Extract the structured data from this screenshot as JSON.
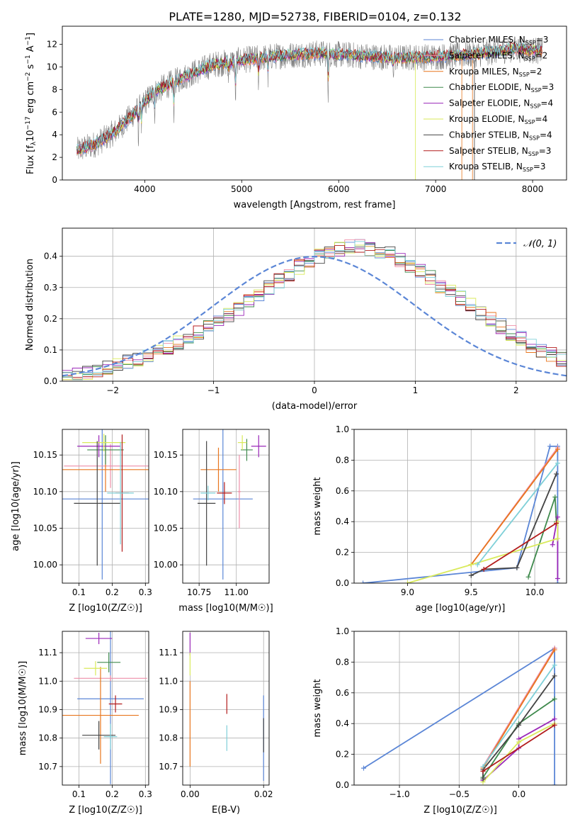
{
  "figure_title": "PLATE=1280, MJD=52738, FIBERID=0104, z=0.132",
  "colors": {
    "Chabrier MILES": "#5b86d6",
    "Salpeter MILES": "#ee8ea8",
    "Kroupa MILES": "#e8761e",
    "Chabrier ELODIE": "#3f8a4d",
    "Salpeter ELODIE": "#9a27b8",
    "Kroupa ELODIE": "#d9ea5a",
    "Chabrier STELIB": "#444444",
    "Salpeter STELIB": "#b31c1c",
    "Kroupa STELIB": "#7fd0d8",
    "data": "#808080",
    "normal": "#5b86d6"
  },
  "chart_data": [
    {
      "type": "line",
      "panel": "spectrum",
      "title": "PLATE=1280, MJD=52738, FIBERID=0104, z=0.132",
      "xlabel": "wavelength [Angstrom, rest frame]",
      "ylabel": "Flux [f_λ 10^-17 erg cm^-2 s^-1 A^-1]",
      "xlim": [
        3150,
        8350
      ],
      "ylim": [
        0,
        13.6
      ],
      "xticks": [
        4000,
        5000,
        6000,
        7000,
        8000
      ],
      "yticks": [
        0,
        2,
        4,
        6,
        8,
        10,
        12
      ],
      "legend_position": "top-right",
      "legend": [
        {
          "name": "Chabrier MILES",
          "nssp": "3"
        },
        {
          "name": "Salpeter MILES",
          "nssp": "2"
        },
        {
          "name": "Kroupa MILES",
          "nssp": "2"
        },
        {
          "name": "Chabrier ELODIE",
          "nssp": "3"
        },
        {
          "name": "Salpeter ELODIE",
          "nssp": "4"
        },
        {
          "name": "Kroupa ELODIE",
          "nssp": "4"
        },
        {
          "name": "Chabrier STELIB",
          "nssp": "4"
        },
        {
          "name": "Salpeter STELIB",
          "nssp": "3"
        },
        {
          "name": "Kroupa STELIB",
          "nssp": "3"
        }
      ],
      "continuum": {
        "x": [
          3300,
          3500,
          3700,
          3900,
          4100,
          4400,
          4700,
          5000,
          5400,
          5800,
          6200,
          6600,
          7000,
          7400,
          7800,
          8100
        ],
        "y": [
          2.6,
          3.2,
          4.3,
          6.0,
          7.8,
          9.1,
          10.2,
          10.6,
          11.0,
          11.2,
          11.0,
          10.8,
          10.9,
          11.1,
          11.6,
          11.4
        ]
      },
      "model_range": [
        3300,
        8100
      ],
      "grid": false
    },
    {
      "type": "step",
      "panel": "residual-histogram",
      "xlabel": "(data-model)/error",
      "ylabel": "Normed distribution",
      "xlim": [
        -2.5,
        2.5
      ],
      "ylim": [
        0,
        0.49
      ],
      "xticks": [
        -2,
        -1,
        0,
        1,
        2
      ],
      "yticks": [
        0.0,
        0.1,
        0.2,
        0.3,
        0.4
      ],
      "legend_position": "top-right",
      "normal_label": "𝒩(0, 1)",
      "bin_width": 0.1,
      "bins_start": -2.5,
      "base_values": [
        0.018,
        0.024,
        0.03,
        0.036,
        0.044,
        0.052,
        0.062,
        0.072,
        0.084,
        0.096,
        0.11,
        0.125,
        0.14,
        0.156,
        0.174,
        0.194,
        0.214,
        0.235,
        0.256,
        0.278,
        0.3,
        0.322,
        0.344,
        0.366,
        0.386,
        0.402,
        0.414,
        0.423,
        0.428,
        0.429,
        0.426,
        0.418,
        0.406,
        0.39,
        0.372,
        0.352,
        0.33,
        0.308,
        0.286,
        0.264,
        0.242,
        0.22,
        0.198,
        0.176,
        0.155,
        0.135,
        0.116,
        0.099,
        0.084,
        0.07
      ],
      "grid": true
    },
    {
      "type": "errorbar",
      "panel": "age-vs-Z",
      "xlabel": "Z [log10(Z/Z☉)]",
      "ylabel": "age [log10(age/yr)]",
      "xlim": [
        0.05,
        0.31
      ],
      "ylim": [
        9.975,
        10.185
      ],
      "xticks": [
        0.1,
        0.2,
        0.3
      ],
      "yticks": [
        10.0,
        10.05,
        10.1,
        10.15
      ],
      "points": [
        {
          "series": "Chabrier MILES",
          "x": 0.17,
          "xerr": 0.14,
          "y": 10.09,
          "yerr": 0.11
        },
        {
          "series": "Salpeter MILES",
          "x": 0.195,
          "xerr": 0.14,
          "y": 10.135,
          "yerr": 0.03
        },
        {
          "series": "Kroupa MILES",
          "x": 0.18,
          "xerr": 0.14,
          "y": 10.13,
          "yerr": 0.03
        },
        {
          "series": "Chabrier ELODIE",
          "x": 0.18,
          "xerr": 0.055,
          "y": 10.157,
          "yerr": 0.02
        },
        {
          "series": "Salpeter ELODIE",
          "x": 0.16,
          "xerr": 0.065,
          "y": 10.162,
          "yerr": 0.015
        },
        {
          "series": "Kroupa ELODIE",
          "x": 0.175,
          "xerr": 0.065,
          "y": 10.167,
          "yerr": 0.012
        },
        {
          "series": "Chabrier STELIB",
          "x": 0.155,
          "xerr": 0.07,
          "y": 10.084,
          "yerr": 0.085
        },
        {
          "series": "Salpeter STELIB",
          "x": 0.23,
          "xerr": 0.02,
          "y": 10.098,
          "yerr": 0.08
        },
        {
          "series": "Kroupa STELIB",
          "x": 0.225,
          "xerr": 0.04,
          "y": 10.098,
          "yerr": 0.07
        }
      ],
      "grid": true
    },
    {
      "type": "errorbar",
      "panel": "age-vs-mass",
      "xlabel": "mass [log10(M/M☉)]",
      "ylabel": "",
      "xlim": [
        10.64,
        11.22
      ],
      "ylim": [
        9.975,
        10.185
      ],
      "xticks": [
        10.75,
        11.0
      ],
      "xticklabels": [
        "10.75",
        "11.00"
      ],
      "yticks": [
        10.0,
        10.05,
        10.1,
        10.15
      ],
      "points": [
        {
          "series": "Chabrier MILES",
          "x": 10.91,
          "xerr": 0.2,
          "y": 10.09,
          "yerr": 0.11
        },
        {
          "series": "Salpeter MILES",
          "x": 11.02,
          "xerr": 0.01,
          "y": 10.1,
          "yerr": 0.05
        },
        {
          "series": "Kroupa MILES",
          "x": 10.88,
          "xerr": 0.12,
          "y": 10.13,
          "yerr": 0.03
        },
        {
          "series": "Chabrier ELODIE",
          "x": 11.07,
          "xerr": 0.04,
          "y": 10.157,
          "yerr": 0.015
        },
        {
          "series": "Salpeter ELODIE",
          "x": 11.15,
          "xerr": 0.05,
          "y": 10.162,
          "yerr": 0.015
        },
        {
          "series": "Kroupa ELODIE",
          "x": 11.04,
          "xerr": 0.03,
          "y": 10.167,
          "yerr": 0.01
        },
        {
          "series": "Chabrier STELIB",
          "x": 10.8,
          "xerr": 0.06,
          "y": 10.084,
          "yerr": 0.085
        },
        {
          "series": "Salpeter STELIB",
          "x": 10.92,
          "xerr": 0.05,
          "y": 10.098,
          "yerr": 0.015
        },
        {
          "series": "Kroupa STELIB",
          "x": 10.81,
          "xerr": 0.05,
          "y": 10.098,
          "yerr": 0.01
        }
      ],
      "grid": true
    },
    {
      "type": "line",
      "panel": "weight-vs-age",
      "xlabel": "age [log10(age/yr)]",
      "ylabel": "mass weight",
      "xlim": [
        8.58,
        10.25
      ],
      "ylim": [
        0,
        1.0
      ],
      "xticks": [
        9.0,
        9.5,
        10.0
      ],
      "yticks": [
        0.0,
        0.2,
        0.4,
        0.6,
        0.8,
        1.0
      ],
      "series": [
        {
          "name": "Chabrier MILES",
          "x": [
            8.65,
            9.86,
            10.12,
            10.18,
            10.18
          ],
          "y": [
            0.0,
            0.1,
            0.89,
            0.89,
            0.0
          ]
        },
        {
          "name": "Salpeter MILES",
          "x": [
            9.5,
            10.18
          ],
          "y": [
            0.12,
            0.88
          ]
        },
        {
          "name": "Kroupa MILES",
          "x": [
            9.5,
            10.18
          ],
          "y": [
            0.12,
            0.87
          ]
        },
        {
          "name": "Chabrier ELODIE",
          "x": [
            9.95,
            10.16,
            10.17
          ],
          "y": [
            0.04,
            0.56,
            0.4
          ]
        },
        {
          "name": "Salpeter ELODIE",
          "x": [
            10.14,
            10.18,
            10.18
          ],
          "y": [
            0.25,
            0.43,
            0.03
          ]
        },
        {
          "name": "Kroupa ELODIE",
          "x": [
            9.0,
            9.5,
            10.18,
            10.18
          ],
          "y": [
            0.0,
            0.12,
            0.29,
            0.4
          ]
        },
        {
          "name": "Chabrier STELIB",
          "x": [
            9.5,
            9.6,
            9.86,
            10.17
          ],
          "y": [
            0.05,
            0.09,
            0.1,
            0.71
          ]
        },
        {
          "name": "Salpeter STELIB",
          "x": [
            9.6,
            10.17
          ],
          "y": [
            0.09,
            0.39
          ]
        },
        {
          "name": "Kroupa STELIB",
          "x": [
            9.55,
            10.18
          ],
          "y": [
            0.12,
            0.78
          ]
        }
      ],
      "grid": true
    },
    {
      "type": "errorbar",
      "panel": "mass-vs-Z",
      "xlabel": "Z [log10(Z/Z☉)]",
      "ylabel": "mass [log10(M/M☉)]",
      "xlim": [
        0.05,
        0.31
      ],
      "ylim": [
        10.635,
        11.175
      ],
      "xticks": [
        0.1,
        0.2,
        0.3
      ],
      "yticks": [
        10.7,
        10.8,
        10.9,
        11.0,
        11.1
      ],
      "points": [
        {
          "series": "Chabrier MILES",
          "x": 0.195,
          "xerr": 0.1,
          "y": 10.938,
          "yerr": 0.3
        },
        {
          "series": "Salpeter MILES",
          "x": 0.195,
          "xerr": 0.11,
          "y": 11.01,
          "yerr": 0.01
        },
        {
          "series": "Kroupa MILES",
          "x": 0.165,
          "xerr": 0.115,
          "y": 10.88,
          "yerr": 0.17
        },
        {
          "series": "Chabrier ELODIE",
          "x": 0.19,
          "xerr": 0.035,
          "y": 11.066,
          "yerr": 0.035
        },
        {
          "series": "Salpeter ELODIE",
          "x": 0.16,
          "xerr": 0.04,
          "y": 11.15,
          "yerr": 0.02
        },
        {
          "series": "Kroupa ELODIE",
          "x": 0.15,
          "xerr": 0.035,
          "y": 11.045,
          "yerr": 0.025
        },
        {
          "series": "Chabrier STELIB",
          "x": 0.16,
          "xerr": 0.05,
          "y": 10.81,
          "yerr": 0.05
        },
        {
          "series": "Salpeter STELIB",
          "x": 0.21,
          "xerr": 0.02,
          "y": 10.92,
          "yerr": 0.03
        },
        {
          "series": "Kroupa STELIB",
          "x": 0.195,
          "xerr": 0.02,
          "y": 10.805,
          "yerr": 0.045
        }
      ],
      "grid": true
    },
    {
      "type": "errorbar",
      "panel": "mass-vs-ebv",
      "xlabel": "E(B-V)",
      "ylabel": "",
      "xlim": [
        -0.002,
        0.0215
      ],
      "ylim": [
        10.635,
        11.175
      ],
      "xticks": [
        0.0,
        0.02
      ],
      "xticklabels": [
        "0.00",
        "0.02"
      ],
      "yticks": [
        10.7,
        10.8,
        10.9,
        11.0,
        11.1
      ],
      "points": [
        {
          "series": "Chabrier MILES",
          "x": 0.02,
          "y": 10.8,
          "yerr": 0.15
        },
        {
          "series": "Kroupa MILES",
          "x": 0.0,
          "y": 10.85,
          "yerr": 0.15
        },
        {
          "series": "Salpeter ELODIE",
          "x": 0.0,
          "y": 11.13,
          "yerr": 0.04
        },
        {
          "series": "Kroupa ELODIE",
          "x": 0.0,
          "y": 11.06,
          "yerr": 0.04
        },
        {
          "series": "Chabrier STELIB",
          "x": 0.02,
          "y": 10.81,
          "yerr": 0.06
        },
        {
          "series": "Salpeter STELIB",
          "x": 0.01,
          "y": 10.92,
          "yerr": 0.035
        },
        {
          "series": "Kroupa STELIB",
          "x": 0.01,
          "y": 10.8,
          "yerr": 0.045
        }
      ],
      "grid": true
    },
    {
      "type": "line",
      "panel": "weight-vs-Z",
      "xlabel": "Z [log10(Z/Z☉)]",
      "ylabel": "mass weight",
      "xlim": [
        -1.38,
        0.4
      ],
      "ylim": [
        0,
        1.0
      ],
      "xticks": [
        -1.0,
        -0.5,
        0.0
      ],
      "yticks": [
        0.0,
        0.2,
        0.4,
        0.6,
        0.8,
        1.0
      ],
      "series": [
        {
          "name": "Chabrier MILES",
          "x": [
            -1.3,
            0.3,
            0.3
          ],
          "y": [
            0.11,
            0.89,
            0.0
          ]
        },
        {
          "name": "Salpeter MILES",
          "x": [
            -0.3,
            0.3
          ],
          "y": [
            0.12,
            0.89
          ]
        },
        {
          "name": "Kroupa MILES",
          "x": [
            -0.3,
            0.3
          ],
          "y": [
            0.11,
            0.88
          ]
        },
        {
          "name": "Chabrier ELODIE",
          "x": [
            -0.3,
            0.0,
            0.3
          ],
          "y": [
            0.05,
            0.4,
            0.56
          ]
        },
        {
          "name": "Salpeter ELODIE",
          "x": [
            -0.3,
            0.0,
            0.0,
            0.3
          ],
          "y": [
            0.03,
            0.24,
            0.3,
            0.43
          ]
        },
        {
          "name": "Kroupa ELODIE",
          "x": [
            -0.3,
            0.0,
            0.3
          ],
          "y": [
            0.02,
            0.28,
            0.4
          ]
        },
        {
          "name": "Chabrier STELIB",
          "x": [
            -0.3,
            -0.3,
            0.0,
            0.3
          ],
          "y": [
            0.04,
            0.1,
            0.39,
            0.71
          ]
        },
        {
          "name": "Salpeter STELIB",
          "x": [
            -0.3,
            0.3
          ],
          "y": [
            0.09,
            0.39
          ]
        },
        {
          "name": "Kroupa STELIB",
          "x": [
            -0.3,
            0.3
          ],
          "y": [
            0.12,
            0.78
          ]
        }
      ],
      "grid": true
    }
  ]
}
